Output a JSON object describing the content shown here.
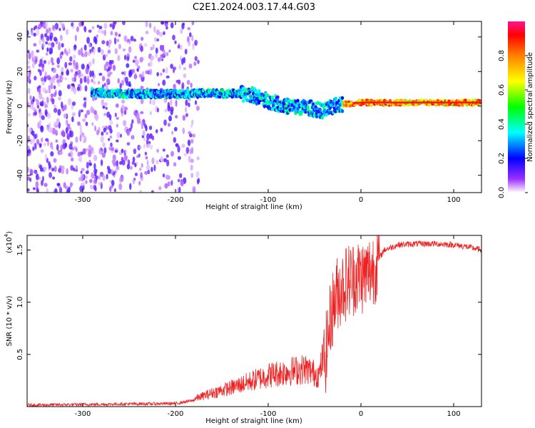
{
  "title": "C2E1.2024.003.17.44.G03",
  "chart_data": [
    {
      "type": "heatmap",
      "xlabel": "Height of straight line (km)",
      "ylabel": "Frequency (Hz)",
      "xlim": [
        -360,
        130
      ],
      "ylim": [
        -50,
        49
      ],
      "xticks": [
        -300,
        -200,
        -100,
        0,
        100
      ],
      "yticks": [
        -40,
        -20,
        0,
        20,
        40
      ],
      "colorbar": {
        "label": "Normalized spectral amplitude",
        "range": [
          0,
          1
        ],
        "ticks": [
          0.0,
          0.2,
          0.4,
          0.6,
          0.8
        ],
        "colors": [
          "#ffffff",
          "#9b30ff",
          "#0000ff",
          "#00ffff",
          "#00ff00",
          "#ffff00",
          "#ff8000",
          "#ff0000",
          "#ff1493"
        ]
      },
      "ridge": [
        {
          "x": -290,
          "y": 8
        },
        {
          "x": -250,
          "y": 7
        },
        {
          "x": -200,
          "y": 7
        },
        {
          "x": -160,
          "y": 7.5
        },
        {
          "x": -120,
          "y": 7
        },
        {
          "x": -100,
          "y": 3
        },
        {
          "x": -80,
          "y": 0
        },
        {
          "x": -55,
          "y": -1
        },
        {
          "x": -40,
          "y": -3
        },
        {
          "x": -25,
          "y": 1
        },
        {
          "x": 0,
          "y": 2
        },
        {
          "x": 50,
          "y": 2
        },
        {
          "x": 100,
          "y": 2
        },
        {
          "x": 130,
          "y": 2
        }
      ]
    },
    {
      "type": "line",
      "xlabel": "Height of straight line (km)",
      "ylabel": "SNR (10 * v/v)",
      "scale_label": "(x10",
      "scale_exp": "4",
      "xlim": [
        -360,
        130
      ],
      "ylim": [
        0,
        16400
      ],
      "xticks": [
        -300,
        -200,
        -100,
        0,
        100
      ],
      "yticks": [
        5000,
        10000,
        15000
      ],
      "ytick_labels": [
        "0.5",
        "1.0",
        "1.5"
      ],
      "series": [
        {
          "color": "#ee2222",
          "points": [
            {
              "x": -360,
              "y": 150
            },
            {
              "x": -300,
              "y": 200
            },
            {
              "x": -250,
              "y": 250
            },
            {
              "x": -200,
              "y": 300
            },
            {
              "x": -180,
              "y": 600
            },
            {
              "x": -160,
              "y": 1100
            },
            {
              "x": -140,
              "y": 1500
            },
            {
              "x": -120,
              "y": 2000
            },
            {
              "x": -100,
              "y": 2500
            },
            {
              "x": -80,
              "y": 2800
            },
            {
              "x": -60,
              "y": 3000
            },
            {
              "x": -45,
              "y": 2500
            },
            {
              "x": -38,
              "y": 5000
            },
            {
              "x": -32,
              "y": 9000
            },
            {
              "x": -25,
              "y": 11000
            },
            {
              "x": -15,
              "y": 12000
            },
            {
              "x": -5,
              "y": 12500
            },
            {
              "x": 5,
              "y": 12500
            },
            {
              "x": 15,
              "y": 13500
            },
            {
              "x": 25,
              "y": 15000
            },
            {
              "x": 40,
              "y": 15500
            },
            {
              "x": 60,
              "y": 15600
            },
            {
              "x": 80,
              "y": 15600
            },
            {
              "x": 100,
              "y": 15500
            },
            {
              "x": 115,
              "y": 15300
            },
            {
              "x": 130,
              "y": 15000
            }
          ]
        }
      ]
    }
  ]
}
